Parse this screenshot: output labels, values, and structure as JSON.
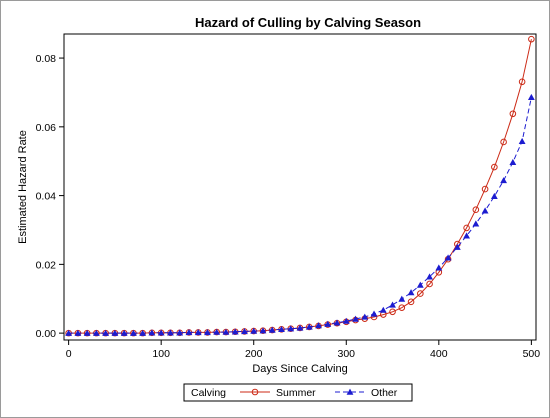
{
  "chart_data": {
    "type": "line",
    "title": "Hazard of Culling by Calving Season",
    "xlabel": "Days Since Calving",
    "ylabel": "Estimated Hazard Rate",
    "xlim": [
      -5,
      505
    ],
    "ylim": [
      -0.002,
      0.087
    ],
    "x_ticks": [
      "0",
      "100",
      "200",
      "300",
      "400",
      "500"
    ],
    "y_ticks": [
      "0.00",
      "0.02",
      "0.04",
      "0.06",
      "0.08"
    ],
    "legend": {
      "title": "Calving",
      "placement": "bottom-center"
    },
    "x": [
      0,
      10,
      20,
      30,
      40,
      50,
      60,
      70,
      80,
      90,
      100,
      110,
      120,
      130,
      140,
      150,
      160,
      170,
      180,
      190,
      200,
      210,
      220,
      230,
      240,
      250,
      260,
      270,
      280,
      290,
      300,
      310,
      320,
      330,
      340,
      350,
      360,
      370,
      380,
      390,
      400,
      410,
      420,
      430,
      440,
      450,
      460,
      470,
      480,
      490,
      500
    ],
    "series": [
      {
        "name": "Summer",
        "color": "#cc2a16",
        "marker": "circle",
        "values": [
          0.0,
          0.0,
          0.0,
          0.0,
          0.0,
          0.0,
          0.0,
          0.0,
          0.0,
          0.0001,
          0.0001,
          0.0001,
          0.0001,
          0.0002,
          0.0002,
          0.0002,
          0.0003,
          0.0003,
          0.0004,
          0.0005,
          0.0006,
          0.0007,
          0.0009,
          0.0011,
          0.0013,
          0.0015,
          0.0018,
          0.0021,
          0.0025,
          0.0029,
          0.0033,
          0.0038,
          0.0042,
          0.0047,
          0.0054,
          0.0062,
          0.0074,
          0.0091,
          0.0115,
          0.0143,
          0.0177,
          0.0215,
          0.0259,
          0.0306,
          0.0359,
          0.0419,
          0.0483,
          0.0556,
          0.0638,
          0.0731,
          0.0855
        ]
      },
      {
        "name": "Other",
        "color": "#1c1cd0",
        "marker": "triangle",
        "values": [
          0.0,
          0.0,
          0.0,
          0.0,
          0.0,
          0.0,
          0.0,
          0.0,
          0.0,
          0.0001,
          0.0001,
          0.0001,
          0.0001,
          0.0002,
          0.0002,
          0.0002,
          0.0003,
          0.0003,
          0.0004,
          0.0005,
          0.0006,
          0.0007,
          0.0009,
          0.0011,
          0.0013,
          0.0015,
          0.0018,
          0.0022,
          0.0026,
          0.003,
          0.0035,
          0.0041,
          0.0047,
          0.0056,
          0.0067,
          0.0082,
          0.0099,
          0.0118,
          0.014,
          0.0164,
          0.019,
          0.0219,
          0.025,
          0.0283,
          0.0318,
          0.0356,
          0.0398,
          0.0444,
          0.0497,
          0.0558,
          0.0686
        ]
      }
    ]
  }
}
